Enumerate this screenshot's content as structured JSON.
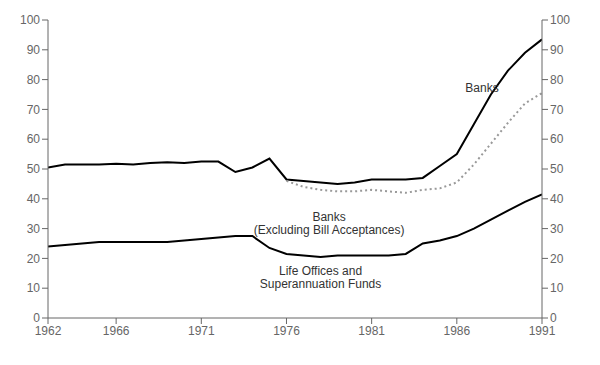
{
  "chart_data": {
    "type": "line",
    "x": [
      1962,
      1963,
      1964,
      1965,
      1966,
      1967,
      1968,
      1969,
      1970,
      1971,
      1972,
      1973,
      1974,
      1975,
      1976,
      1977,
      1978,
      1979,
      1980,
      1981,
      1982,
      1983,
      1984,
      1985,
      1986,
      1987,
      1988,
      1989,
      1990,
      1991
    ],
    "series": [
      {
        "name": "Life Offices and\nSuperannuation Funds",
        "color": "#000000",
        "line_style": "solid",
        "values": [
          24.0,
          24.5,
          25.0,
          25.5,
          25.5,
          25.5,
          25.5,
          25.5,
          26.0,
          26.5,
          27.0,
          27.5,
          27.5,
          23.5,
          21.5,
          21.0,
          20.5,
          21.0,
          21.0,
          21.0,
          21.0,
          21.5,
          25.0,
          26.0,
          27.5,
          30.0,
          33.0,
          36.0,
          39.0,
          41.5
        ]
      },
      {
        "name": "Banks",
        "color": "#000000",
        "line_style": "solid",
        "values": [
          50.5,
          51.5,
          51.5,
          51.5,
          51.8,
          51.5,
          52.0,
          52.3,
          52.0,
          52.5,
          52.5,
          49.0,
          50.5,
          53.5,
          46.5,
          46.0,
          45.5,
          45.0,
          45.5,
          46.5,
          46.5,
          46.5,
          47.0,
          51.0,
          55.0,
          65.0,
          75.0,
          83.0,
          89.0,
          93.5
        ]
      },
      {
        "name": "Banks\n(Excluding Bill Acceptances)",
        "color": "#999999",
        "line_style": "dotted",
        "values": [
          null,
          null,
          null,
          null,
          null,
          null,
          null,
          null,
          null,
          null,
          null,
          null,
          null,
          null,
          46.0,
          44.0,
          43.0,
          42.5,
          42.5,
          43.0,
          42.5,
          42.0,
          43.0,
          43.5,
          45.5,
          51.5,
          58.5,
          65.5,
          72.0,
          75.5
        ]
      }
    ],
    "xlim": [
      1962,
      1991
    ],
    "xticks": [
      1962,
      1966,
      1971,
      1976,
      1981,
      1986,
      1991
    ],
    "ylim": [
      0,
      100
    ],
    "yticks": [
      0,
      10,
      20,
      30,
      40,
      50,
      60,
      70,
      80,
      90,
      100
    ],
    "y2lim": [
      0,
      100
    ],
    "y2ticks": [
      0,
      10,
      20,
      30,
      40,
      50,
      60,
      70,
      80,
      90,
      100
    ],
    "grid": false,
    "annotations": [
      {
        "text": "Banks",
        "x": 1986.5,
        "y": 77
      },
      {
        "text": "Banks\n(Excluding Bill Acceptances)",
        "x": 1978.5,
        "y": 36
      },
      {
        "text": "Life Offices and\nSuperannuation Funds",
        "x": 1978.0,
        "y": 18
      }
    ]
  }
}
